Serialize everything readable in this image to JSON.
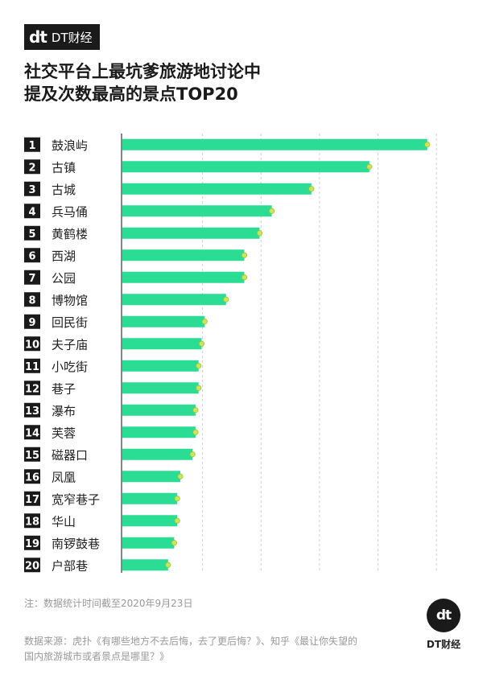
{
  "brand": {
    "logo_mark": "dt",
    "name": "DT财经"
  },
  "title": {
    "line1": "社交平台上最坑爹旅游地讨论中",
    "line2": "提及次数最高的景点TOP20"
  },
  "footer": {
    "note": "注：数据统计时间截至2020年9月23日",
    "source_line1": "数据来源：虎扑《有哪些地方不去后悔，去了更后悔？》、知乎《最让你失望的",
    "source_line2": "国内旅游城市或者景点是哪里？》"
  },
  "colors": {
    "bar": "#2bdc94",
    "dot": "#c9e65a",
    "rank_bg": "#1a1a1a"
  },
  "chart_data": {
    "type": "bar",
    "orientation": "horizontal",
    "title": "社交平台上最坑爹旅游地讨论中提及次数最高的景点TOP20",
    "categories": [
      "鼓浪屿",
      "古镇",
      "古城",
      "兵马俑",
      "黄鹤楼",
      "西湖",
      "公园",
      "博物馆",
      "回民街",
      "夫子庙",
      "小吃街",
      "巷子",
      "瀑布",
      "芙蓉",
      "磁器口",
      "凤凰",
      "宽窄巷子",
      "华山",
      "南锣鼓巷",
      "户部巷"
    ],
    "ranks": [
      "1",
      "2",
      "3",
      "4",
      "5",
      "6",
      "7",
      "8",
      "9",
      "10",
      "11",
      "12",
      "13",
      "14",
      "15",
      "16",
      "17",
      "18",
      "19",
      "20"
    ],
    "values": [
      100,
      81,
      62,
      49,
      45,
      40,
      40,
      34,
      27,
      26,
      25,
      25,
      24,
      24,
      23,
      19,
      18,
      18,
      17,
      15
    ],
    "xlim": [
      0,
      105
    ],
    "grid": "vertical-dashed",
    "legend": "none"
  }
}
